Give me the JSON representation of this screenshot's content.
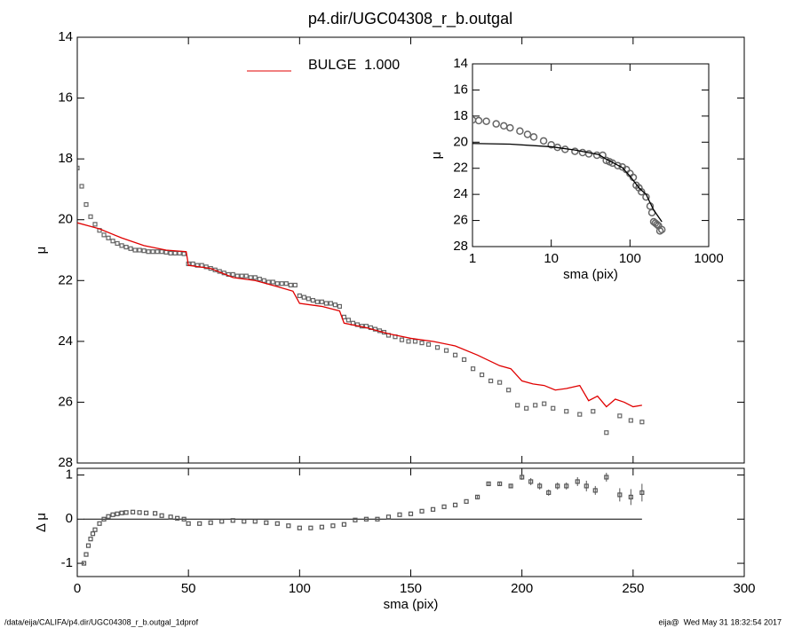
{
  "chart_data": [
    {
      "type": "scatter",
      "title": "p4.dir/UGC04308_r_b.outgal",
      "y_label": "μ",
      "xlim": [
        0,
        300
      ],
      "xticks": [
        0,
        50,
        100,
        150,
        200,
        250,
        300
      ],
      "ylim": [
        28,
        14
      ],
      "yticks": [
        14,
        16,
        18,
        20,
        22,
        24,
        26,
        28
      ],
      "series": [
        {
          "color": "#666666",
          "style": "square",
          "x": [
            0,
            2,
            4,
            6,
            8,
            10,
            12,
            14,
            16,
            18,
            20,
            22,
            24,
            26,
            28,
            30,
            32,
            34,
            36,
            38,
            40,
            42,
            44,
            46,
            48,
            50,
            52,
            54,
            56,
            58,
            60,
            62,
            64,
            66,
            68,
            70,
            72,
            74,
            76,
            78,
            80,
            82,
            84,
            86,
            88,
            90,
            92,
            94,
            96,
            98,
            100,
            102,
            104,
            106,
            108,
            110,
            112,
            114,
            116,
            118,
            120,
            122,
            124,
            126,
            128,
            130,
            132,
            134,
            136,
            138,
            140,
            143,
            146,
            149,
            152,
            155,
            158,
            162,
            166,
            170,
            174,
            178,
            182,
            186,
            190,
            194,
            198,
            202,
            206,
            210,
            214,
            220,
            226,
            232,
            238,
            244,
            249,
            254
          ],
          "values": [
            18.3,
            18.9,
            19.5,
            19.9,
            20.15,
            20.35,
            20.5,
            20.6,
            20.7,
            20.78,
            20.85,
            20.9,
            20.95,
            21.0,
            21.0,
            21.02,
            21.05,
            21.05,
            21.05,
            21.05,
            21.07,
            21.1,
            21.1,
            21.1,
            21.12,
            21.45,
            21.45,
            21.5,
            21.5,
            21.55,
            21.6,
            21.65,
            21.7,
            21.75,
            21.8,
            21.8,
            21.85,
            21.85,
            21.85,
            21.9,
            21.9,
            21.95,
            22.0,
            22.05,
            22.05,
            22.1,
            22.1,
            22.1,
            22.15,
            22.15,
            22.5,
            22.55,
            22.6,
            22.65,
            22.7,
            22.7,
            22.75,
            22.75,
            22.8,
            22.85,
            23.2,
            23.3,
            23.4,
            23.45,
            23.5,
            23.5,
            23.55,
            23.6,
            23.65,
            23.7,
            23.8,
            23.85,
            23.95,
            24.0,
            24.0,
            24.05,
            24.1,
            24.2,
            24.3,
            24.45,
            24.6,
            24.9,
            25.1,
            25.3,
            25.35,
            25.6,
            26.1,
            26.2,
            26.1,
            26.05,
            26.2,
            26.3,
            26.4,
            26.3,
            27.0,
            26.45,
            26.6,
            26.65
          ]
        },
        {
          "name": "BULGE  1.000",
          "color": "#e00000",
          "style": "line",
          "x": [
            0,
            10,
            20,
            30,
            40,
            49,
            50,
            60,
            70,
            80,
            90,
            97,
            100,
            110,
            118,
            120,
            130,
            140,
            150,
            160,
            170,
            180,
            190,
            195,
            200,
            205,
            210,
            215,
            220,
            226,
            230,
            234,
            238,
            242,
            246,
            250,
            254
          ],
          "values": [
            20.1,
            20.3,
            20.6,
            20.85,
            21.0,
            21.05,
            21.5,
            21.6,
            21.9,
            22.0,
            22.2,
            22.35,
            22.75,
            22.85,
            23.0,
            23.4,
            23.55,
            23.75,
            23.9,
            24.0,
            24.15,
            24.45,
            24.8,
            24.9,
            25.3,
            25.4,
            25.45,
            25.6,
            25.55,
            25.45,
            25.95,
            25.8,
            26.15,
            25.9,
            26.0,
            26.15,
            26.1
          ]
        }
      ]
    },
    {
      "type": "scatter",
      "x_label": "sma (pix)",
      "y_label": "Δ μ",
      "xlim": [
        0,
        300
      ],
      "xticks": [
        0,
        50,
        100,
        150,
        200,
        250,
        300
      ],
      "ylim": [
        -1.3,
        1.15
      ],
      "yticks": [
        -1,
        0,
        1
      ],
      "hline": 0,
      "series": [
        {
          "color": "#555555",
          "style": "square",
          "x": [
            3,
            4,
            5,
            6,
            7,
            8,
            10,
            12,
            14,
            16,
            18,
            20,
            22,
            25,
            28,
            31,
            35,
            38,
            42,
            45,
            48,
            50,
            55,
            60,
            65,
            70,
            75,
            80,
            85,
            90,
            95,
            100,
            105,
            110,
            115,
            120,
            125,
            130,
            135,
            140,
            145,
            150,
            155,
            160,
            165,
            170,
            175,
            180,
            185,
            190,
            195,
            200,
            204,
            208,
            212,
            216,
            220,
            225,
            229,
            233,
            238,
            244,
            249,
            254
          ],
          "values": [
            -1.0,
            -0.8,
            -0.6,
            -0.45,
            -0.33,
            -0.24,
            -0.1,
            0.0,
            0.06,
            0.1,
            0.12,
            0.14,
            0.15,
            0.16,
            0.15,
            0.14,
            0.13,
            0.08,
            0.05,
            0.02,
            0.0,
            -0.1,
            -0.1,
            -0.08,
            -0.05,
            -0.03,
            -0.05,
            -0.05,
            -0.08,
            -0.1,
            -0.15,
            -0.2,
            -0.2,
            -0.18,
            -0.15,
            -0.12,
            -0.02,
            0.0,
            0.0,
            0.05,
            0.1,
            0.12,
            0.18,
            0.22,
            0.28,
            0.32,
            0.4,
            0.5,
            0.8,
            0.8,
            0.75,
            0.95,
            0.85,
            0.75,
            0.6,
            0.75,
            0.75,
            0.85,
            0.75,
            0.65,
            0.95,
            0.55,
            0.5,
            0.6
          ],
          "errors": [
            null,
            null,
            null,
            null,
            null,
            null,
            null,
            null,
            null,
            null,
            null,
            null,
            null,
            null,
            null,
            null,
            null,
            null,
            null,
            null,
            null,
            null,
            null,
            null,
            null,
            null,
            null,
            null,
            null,
            null,
            null,
            null,
            null,
            null,
            null,
            null,
            null,
            null,
            null,
            null,
            null,
            null,
            null,
            null,
            null,
            null,
            null,
            0.03,
            0.04,
            0.04,
            0.05,
            0.06,
            0.08,
            0.08,
            0.07,
            0.08,
            0.08,
            0.1,
            0.12,
            0.1,
            0.1,
            0.15,
            0.18,
            0.2
          ]
        }
      ]
    },
    {
      "type": "scatter",
      "x_label": "sma (pix)",
      "y_label": "μ",
      "xlog": true,
      "xlim": [
        1,
        1000
      ],
      "xticks": [
        1,
        10,
        100,
        1000
      ],
      "ylim": [
        28,
        14
      ],
      "yticks": [
        14,
        16,
        18,
        20,
        22,
        24,
        26,
        28
      ],
      "series": [
        {
          "color": "#666666",
          "style": "circle",
          "x": [
            1,
            1.2,
            1.5,
            2,
            2.5,
            3,
            4,
            5,
            6,
            8,
            10,
            12,
            15,
            20,
            25,
            30,
            38,
            45,
            50,
            55,
            60,
            70,
            80,
            90,
            100,
            110,
            120,
            130,
            140,
            160,
            180,
            190,
            200,
            210,
            220,
            230,
            240,
            254
          ],
          "values": [
            18.3,
            18.35,
            18.4,
            18.6,
            18.75,
            18.9,
            19.15,
            19.4,
            19.6,
            19.9,
            20.2,
            20.4,
            20.55,
            20.7,
            20.8,
            20.9,
            21.0,
            21.0,
            21.4,
            21.5,
            21.6,
            21.8,
            21.9,
            22.1,
            22.4,
            22.7,
            23.3,
            23.5,
            23.8,
            24.2,
            24.9,
            25.4,
            26.1,
            26.2,
            26.3,
            26.4,
            26.8,
            26.7
          ]
        },
        {
          "color": "#000000",
          "style": "line",
          "x": [
            1,
            3,
            10,
            20,
            40,
            50,
            80,
            100,
            130,
            160,
            200,
            254
          ],
          "values": [
            20.1,
            20.15,
            20.35,
            20.6,
            20.95,
            21.3,
            21.95,
            22.6,
            23.5,
            24.0,
            25.2,
            26.1
          ]
        }
      ]
    }
  ],
  "footer": {
    "left": "/data/eija/CALIFA/p4.dir/UGC04308_r_b.outgal_1dprof",
    "right": "eija@  Wed May 31 18:32:54 2017"
  }
}
